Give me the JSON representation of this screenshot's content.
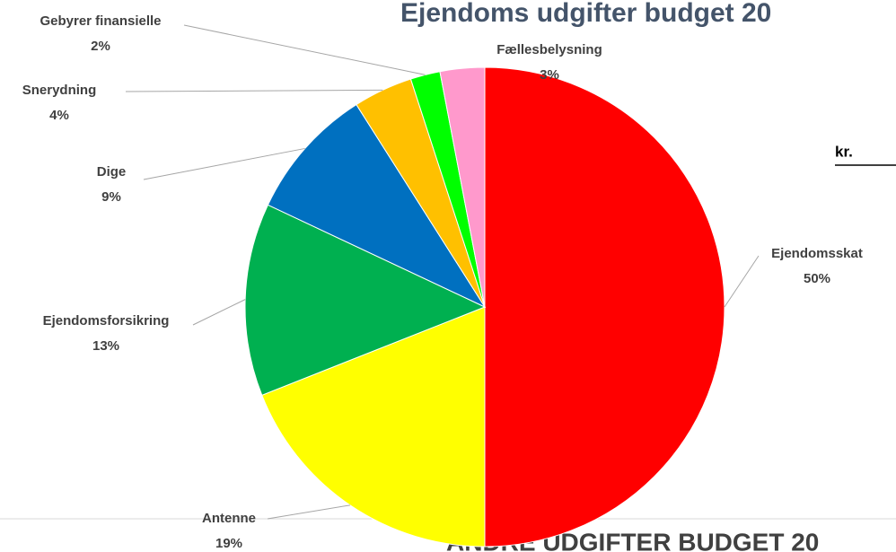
{
  "chart_data": {
    "type": "pie",
    "title": "Ejendoms udgifter budget 20",
    "categories": [
      "Ejendomsskat",
      "Antenne",
      "Ejendomsforsikring",
      "Dige",
      "Snerydning",
      "Gebyrer finansielle",
      "Fællesbelysning"
    ],
    "values": [
      50,
      19,
      13,
      9,
      4,
      2,
      3
    ],
    "value_labels": [
      "50%",
      "19%",
      "13%",
      "9%",
      "4%",
      "2%",
      "3%"
    ],
    "colors": [
      "#ff0000",
      "#ffff00",
      "#00b050",
      "#0070c0",
      "#ffc000",
      "#00ff00",
      "#ff99cc"
    ],
    "annotations": [
      "kr.",
      "ANDRE UDGIFTER BUDGET 20"
    ]
  }
}
